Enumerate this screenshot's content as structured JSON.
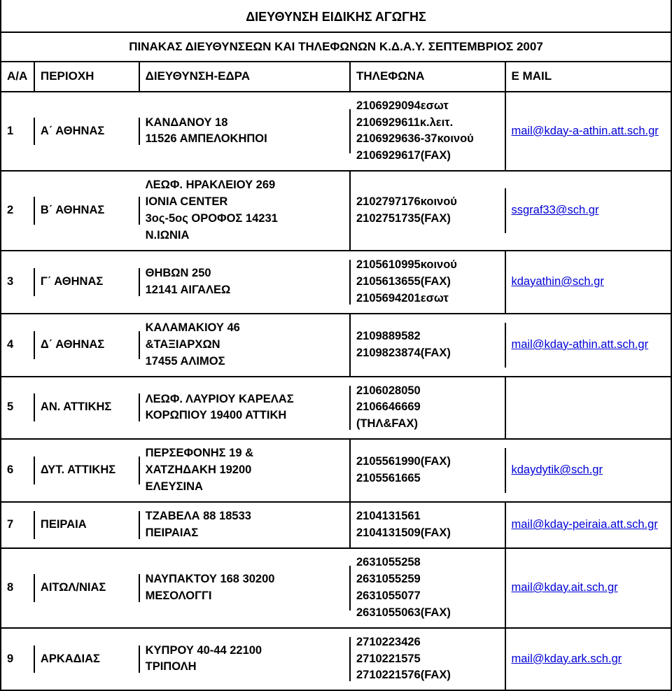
{
  "title": "ΔΙΕΥΘΥΝΣΗ ΕΙΔΙΚΗΣ ΑΓΩΓΗΣ",
  "subtitle": "ΠΙΝΑΚΑΣ ΔΙΕΥΘΥΝΣΕΩΝ ΚΑΙ ΤΗΛΕΦΩΝΩΝ Κ.Δ.Α.Υ. ΣΕΠΤΕΜΒΡΙΟΣ 2007",
  "headers": {
    "aa": "Α/Α",
    "region": "ΠΕΡΙΟΧΗ",
    "address": "ΔΙΕΥΘΥΝΣΗ-ΕΔΡΑ",
    "phones": "ΤΗΛΕΦΩΝΑ",
    "email": "E MAIL"
  },
  "rows": [
    {
      "aa": "1",
      "region": "Α΄ ΑΘΗΝΑΣ",
      "address": "     ΚΑΝΔΑΝΟΥ 18\n11526 ΑΜΠΕΛΟΚΗΠΟΙ",
      "phones": "2106929094εσωτ\n2106929611κ.λειτ.\n2106929636-37κοινού\n2106929617(FAX)",
      "email": "mail@kday-a-athin.att.sch.gr"
    },
    {
      "aa": "2",
      "region": "Β΄ ΑΘΗΝΑΣ",
      "address": "       ΛΕΩΦ. ΗΡΑΚΛΕΙΟΥ 269\nIONIA CENTER\n3ος-5ος ΟΡΟΦΟΣ         14231\nΝ.ΙΩΝΙΑ",
      "phones": "2102797176κοινού\n2102751735(FAX)",
      "email": "ssgraf33@sch.gr"
    },
    {
      "aa": "3",
      "region": "Γ΄ ΑΘΗΝΑΣ",
      "address": "     ΘΗΒΩΝ 250\n12141 ΑΙΓΑΛΕΩ",
      "phones": "2105610995κοινού\n2105613655(FAX)\n2105694201εσωτ",
      "email": "kdayathin@sch.gr"
    },
    {
      "aa": "4",
      "region": "Δ΄ ΑΘΗΝΑΣ",
      "address": "ΚΑΛΑΜΑΚΙΟΥ 46\n&ΤΑΞΙΑΡΧΩΝ\n17455 ΑΛΙΜΟΣ",
      "phones": "2109889582\n2109823874(FAX)",
      "email": "mail@kday-athin.att.sch.gr"
    },
    {
      "aa": "5",
      "region": "ΑΝ. ΑΤΤΙΚΗΣ",
      "address": "     ΛΕΩΦ. ΛΑΥΡΙΟΥ  ΚΑΡΕΛΑΣ\nΚΟΡΩΠΙΟΥ   19400 ΑΤΤΙΚΗ",
      "phones": "2106028050\n2106646669\n(ΤΗΛ&FAX)",
      "email": ""
    },
    {
      "aa": "6",
      "region": "ΔΥΤ. ΑΤΤΙΚΗΣ",
      "address": "     ΠΕΡΣΕΦΟΝΗΣ 19 &\nΧΑΤΖΗΔΑΚΗ                  19200\nΕΛΕΥΣΙΝΑ",
      "phones": "2105561990(FAX)\n2105561665",
      "email": "kdaydytik@sch.gr"
    },
    {
      "aa": "7",
      "region": "ΠΕΙΡΑΙΑ",
      "address": "       ΤΖΑΒΕΛΑ 88              18533\nΠΕΙΡΑΙΑΣ",
      "phones": "2104131561\n2104131509(FAX)",
      "email": "mail@kday-peiraia.att.sch.gr"
    },
    {
      "aa": "8",
      "region": "ΑΙΤΩΛ/ΝΙΑΣ",
      "address": "     ΝΑΥΠΑΚΤΟΥ 168        30200\nΜΕΣΟΛΟΓΓΙ",
      "phones": "2631055258\n2631055259\n2631055077\n2631055063(FAX)",
      "email": "mail@kday.ait.sch.gr"
    },
    {
      "aa": "9",
      "region": "ΑΡΚΑΔΙΑΣ",
      "address": "     ΚΥΠΡΟΥ 40-44           22100\nΤΡΙΠΟΛΗ",
      "phones": "2710223426\n2710221575\n2710221576(FAX)",
      "email": "mail@kday.ark.sch.gr"
    }
  ],
  "colors": {
    "text": "#000000",
    "link": "#0000d6",
    "border": "#000000",
    "background": "#ffffff"
  }
}
